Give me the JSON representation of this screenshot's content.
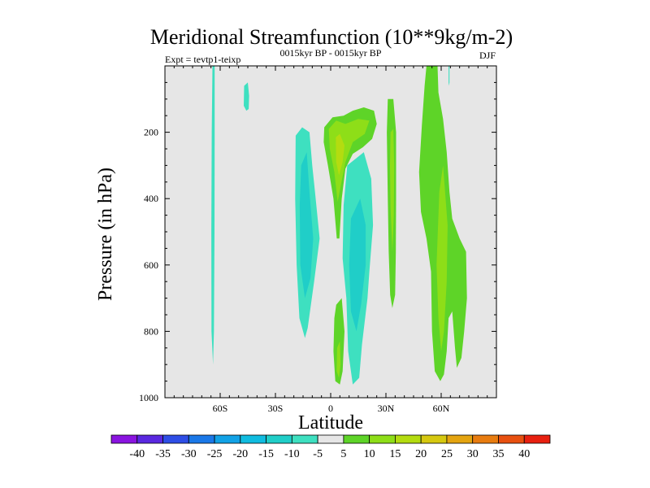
{
  "chart_data": {
    "type": "contour",
    "title": "Meridional Streamfunction (10**9kg/m-2)",
    "subtitle_left": "Expt = tevtp1-teixp",
    "subtitle_center": "0015kyr BP - 0015kyr BP",
    "subtitle_right": "DJF",
    "xlabel": "Latitude",
    "ylabel": "Pressure (in hPa)",
    "xlim": [
      -90,
      90
    ],
    "ylim": [
      0,
      1000
    ],
    "y_inverted": true,
    "x_ticks": [
      {
        "value": -60,
        "label": "60S"
      },
      {
        "value": -30,
        "label": "30S"
      },
      {
        "value": 0,
        "label": "0"
      },
      {
        "value": 30,
        "label": "30N"
      },
      {
        "value": 60,
        "label": "60N"
      }
    ],
    "y_ticks": [
      {
        "value": 200,
        "label": "200"
      },
      {
        "value": 400,
        "label": "400"
      },
      {
        "value": 600,
        "label": "600"
      },
      {
        "value": 800,
        "label": "800"
      },
      {
        "value": 1000,
        "label": "1000"
      }
    ],
    "background_color": "#e6e6e6",
    "colorbar": {
      "levels": [
        "-40",
        "-35",
        "-30",
        "-25",
        "-20",
        "-15",
        "-10",
        "-5",
        "5",
        "10",
        "15",
        "20",
        "25",
        "30",
        "35",
        "40"
      ],
      "colors": [
        "#8a14e0",
        "#5a28e0",
        "#2e4ee6",
        "#1a78e8",
        "#12a2e6",
        "#10bce0",
        "#20cec8",
        "#3ee0c0",
        "#e6e6e6",
        "#5ed428",
        "#8ede18",
        "#b4dc10",
        "#d6c810",
        "#e4a410",
        "#e87c10",
        "#e85010",
        "#e82010"
      ]
    },
    "regions": [
      {
        "name": "cell-65s-negative",
        "value": -10,
        "color": "#3ee0c0",
        "points": [
          [
            -64.2,
            0
          ],
          [
            -63,
            0
          ],
          [
            -63,
            200
          ],
          [
            -63.1,
            500
          ],
          [
            -63.4,
            800
          ],
          [
            -63.9,
            900
          ],
          [
            -64.7,
            800
          ],
          [
            -64.8,
            500
          ],
          [
            -64.6,
            200
          ]
        ]
      },
      {
        "name": "cell-45s-negative",
        "value": -10,
        "color": "#3ee0c0",
        "points": [
          [
            -47,
            60
          ],
          [
            -45,
            50
          ],
          [
            -44.3,
            90
          ],
          [
            -44.5,
            130
          ],
          [
            -45.8,
            135
          ],
          [
            -47.2,
            120
          ]
        ]
      },
      {
        "name": "cell-15s-negative-outer",
        "value": -10,
        "color": "#3ee0c0",
        "points": [
          [
            -19,
            210
          ],
          [
            -15.5,
            185
          ],
          [
            -11.5,
            200
          ],
          [
            -10,
            300
          ],
          [
            -8.5,
            380
          ],
          [
            -6,
            520
          ],
          [
            -9,
            650
          ],
          [
            -12.5,
            790
          ],
          [
            -14,
            820
          ],
          [
            -17,
            760
          ],
          [
            -18.5,
            600
          ],
          [
            -19.3,
            400
          ]
        ]
      },
      {
        "name": "cell-15s-negative-inner",
        "value": -15,
        "color": "#20cec8",
        "points": [
          [
            -16,
            300
          ],
          [
            -13,
            260
          ],
          [
            -11.5,
            380
          ],
          [
            -9.5,
            520
          ],
          [
            -11,
            640
          ],
          [
            -14,
            700
          ],
          [
            -16.5,
            600
          ],
          [
            -16.8,
            420
          ]
        ]
      },
      {
        "name": "cell-10n-negative-outer",
        "value": -10,
        "color": "#3ee0c0",
        "points": [
          [
            9,
            300
          ],
          [
            18,
            260
          ],
          [
            22,
            340
          ],
          [
            23,
            480
          ],
          [
            21,
            620
          ],
          [
            20,
            700
          ],
          [
            17,
            840
          ],
          [
            15.5,
            940
          ],
          [
            12,
            960
          ],
          [
            9.5,
            860
          ],
          [
            8.5,
            700
          ],
          [
            6.5,
            580
          ],
          [
            7,
            420
          ]
        ]
      },
      {
        "name": "cell-10n-negative-inner",
        "value": -15,
        "color": "#20cec8",
        "points": [
          [
            11,
            460
          ],
          [
            16,
            400
          ],
          [
            19,
            480
          ],
          [
            19,
            600
          ],
          [
            16.5,
            720
          ],
          [
            14,
            800
          ],
          [
            11,
            740
          ],
          [
            10,
            600
          ]
        ]
      },
      {
        "name": "cell-5n-positive-outer",
        "value": 5,
        "color": "#5ed428",
        "points": [
          [
            -3.5,
            185
          ],
          [
            1,
            155
          ],
          [
            7,
            150
          ],
          [
            12,
            135
          ],
          [
            18,
            125
          ],
          [
            23.5,
            135
          ],
          [
            25,
            175
          ],
          [
            22.5,
            220
          ],
          [
            17.5,
            245
          ],
          [
            12,
            265
          ],
          [
            8,
            310
          ],
          [
            6,
            400
          ],
          [
            4.7,
            520
          ],
          [
            3.3,
            520
          ],
          [
            1.5,
            400
          ],
          [
            -1.5,
            300
          ],
          [
            -3.8,
            230
          ]
        ]
      },
      {
        "name": "cell-5n-positive-mid",
        "value": 10,
        "color": "#8ede18",
        "points": [
          [
            -1,
            190
          ],
          [
            3,
            165
          ],
          [
            8,
            175
          ],
          [
            15,
            160
          ],
          [
            21,
            165
          ],
          [
            18.5,
            205
          ],
          [
            12,
            230
          ],
          [
            8,
            290
          ],
          [
            5.5,
            360
          ],
          [
            3.8,
            410
          ],
          [
            2,
            320
          ],
          [
            -0.5,
            250
          ]
        ]
      },
      {
        "name": "cell-5n-positive-core",
        "value": 15,
        "color": "#b4dc10",
        "points": [
          [
            2.8,
            215
          ],
          [
            5,
            205
          ],
          [
            7.5,
            240
          ],
          [
            6.5,
            290
          ],
          [
            4.5,
            330
          ],
          [
            3,
            290
          ]
        ]
      },
      {
        "name": "cell-0-positive-low",
        "value": 5,
        "color": "#5ed428",
        "points": [
          [
            3,
            720
          ],
          [
            6,
            700
          ],
          [
            7.5,
            800
          ],
          [
            6.5,
            920
          ],
          [
            5,
            960
          ],
          [
            2.5,
            950
          ],
          [
            1.5,
            860
          ],
          [
            2,
            760
          ]
        ]
      },
      {
        "name": "cell-0-positive-low-core",
        "value": 10,
        "color": "#8ede18",
        "points": [
          [
            3.5,
            850
          ],
          [
            5,
            830
          ],
          [
            5.4,
            900
          ],
          [
            4.5,
            940
          ],
          [
            3.2,
            920
          ]
        ]
      },
      {
        "name": "cell-30n-positive-outer",
        "value": 5,
        "color": "#5ed428",
        "points": [
          [
            31,
            100
          ],
          [
            34,
            100
          ],
          [
            35.5,
            200
          ],
          [
            35.5,
            400
          ],
          [
            35.4,
            560
          ],
          [
            35,
            690
          ],
          [
            33.5,
            730
          ],
          [
            32.3,
            690
          ],
          [
            31.5,
            560
          ],
          [
            31,
            400
          ],
          [
            30.5,
            200
          ]
        ]
      },
      {
        "name": "cell-30n-positive-inner",
        "value": 10,
        "color": "#8ede18",
        "points": [
          [
            32.5,
            200
          ],
          [
            34,
            190
          ],
          [
            34.5,
            300
          ],
          [
            34.3,
            450
          ],
          [
            33.5,
            560
          ],
          [
            32.5,
            430
          ],
          [
            32.2,
            300
          ]
        ]
      },
      {
        "name": "cell-55n-positive-outer",
        "value": 5,
        "color": "#5ed428",
        "points": [
          [
            52,
            0
          ],
          [
            58,
            0
          ],
          [
            58.5,
            80
          ],
          [
            61,
            160
          ],
          [
            63,
            260
          ],
          [
            64.5,
            380
          ],
          [
            66,
            460
          ],
          [
            70,
            520
          ],
          [
            73.5,
            560
          ],
          [
            74,
            700
          ],
          [
            72.5,
            800
          ],
          [
            71,
            880
          ],
          [
            68.5,
            910
          ],
          [
            67.5,
            850
          ],
          [
            66,
            740
          ],
          [
            64,
            760
          ],
          [
            63,
            860
          ],
          [
            61.5,
            930
          ],
          [
            59.5,
            950
          ],
          [
            56.5,
            920
          ],
          [
            55,
            800
          ],
          [
            54.5,
            620
          ],
          [
            52,
            520
          ],
          [
            49,
            440
          ],
          [
            48,
            320
          ],
          [
            49.5,
            180
          ],
          [
            51,
            60
          ]
        ]
      },
      {
        "name": "cell-55n-positive-inner",
        "value": 10,
        "color": "#8ede18",
        "points": [
          [
            59,
            380
          ],
          [
            61,
            300
          ],
          [
            63.5,
            480
          ],
          [
            63,
            650
          ],
          [
            61.5,
            800
          ],
          [
            60,
            860
          ],
          [
            58.5,
            760
          ],
          [
            57.5,
            600
          ]
        ]
      },
      {
        "name": "cell-60n-negative-sliver",
        "value": -10,
        "color": "#3ee0c0",
        "points": [
          [
            64,
            0
          ],
          [
            64.5,
            0
          ],
          [
            64.5,
            50
          ],
          [
            64.3,
            60
          ],
          [
            64,
            50
          ]
        ]
      }
    ]
  }
}
